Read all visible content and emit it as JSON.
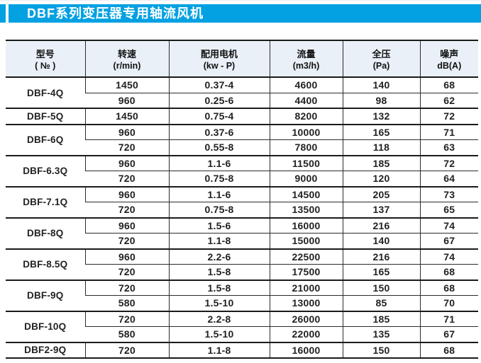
{
  "page": {
    "title": "DBF系列变压器专用轴流风机"
  },
  "colors": {
    "accent": "#04a1e2",
    "header_bg": "#e9f0f7"
  },
  "table": {
    "columns": [
      {
        "line1": "型号",
        "line2": "( № )"
      },
      {
        "line1": "转速",
        "line2": "(r/min)"
      },
      {
        "line1": "配用电机",
        "line2": "(kw - P)"
      },
      {
        "line1": "流量",
        "line2": "(m3/h)"
      },
      {
        "line1": "全压",
        "line2": "(Pa)"
      },
      {
        "line1": "噪声",
        "line2": "dB(A)"
      }
    ],
    "groups": [
      {
        "model": "DBF-4Q",
        "rows": [
          [
            "1450",
            "0.37-4",
            "4600",
            "140",
            "68"
          ],
          [
            "960",
            "0.25-6",
            "4400",
            "98",
            "62"
          ]
        ]
      },
      {
        "model": "DBF-5Q",
        "rows": [
          [
            "1450",
            "0.75-4",
            "8200",
            "132",
            "72"
          ]
        ]
      },
      {
        "model": "DBF-6Q",
        "rows": [
          [
            "960",
            "0.37-6",
            "10000",
            "165",
            "71"
          ],
          [
            "720",
            "0.55-8",
            "7800",
            "118",
            "63"
          ]
        ]
      },
      {
        "model": "DBF-6.3Q",
        "rows": [
          [
            "960",
            "1.1-6",
            "11500",
            "185",
            "72"
          ],
          [
            "720",
            "0.75-8",
            "9000",
            "120",
            "64"
          ]
        ]
      },
      {
        "model": "DBF-7.1Q",
        "rows": [
          [
            "960",
            "1.1-6",
            "14500",
            "205",
            "73"
          ],
          [
            "720",
            "0.75-8",
            "13500",
            "137",
            "65"
          ]
        ]
      },
      {
        "model": "DBF-8Q",
        "rows": [
          [
            "960",
            "1.5-6",
            "16000",
            "216",
            "74"
          ],
          [
            "720",
            "1.1-8",
            "15000",
            "140",
            "67"
          ]
        ]
      },
      {
        "model": "DBF-8.5Q",
        "rows": [
          [
            "960",
            "2.2-6",
            "22500",
            "216",
            "74"
          ],
          [
            "720",
            "1.5-8",
            "17500",
            "165",
            "68"
          ]
        ]
      },
      {
        "model": "DBF-9Q",
        "rows": [
          [
            "720",
            "1.5-8",
            "21000",
            "150",
            "68"
          ],
          [
            "580",
            "1.5-10",
            "13000",
            "85",
            "70"
          ]
        ]
      },
      {
        "model": "DBF-10Q",
        "rows": [
          [
            "720",
            "2.2-8",
            "26000",
            "185",
            "71"
          ],
          [
            "580",
            "1.5-10",
            "22000",
            "135",
            "67"
          ]
        ]
      },
      {
        "model": "DBF2-9Q",
        "rows": [
          [
            "720",
            "1.1-8",
            "16000",
            "150",
            "68"
          ]
        ]
      }
    ]
  }
}
